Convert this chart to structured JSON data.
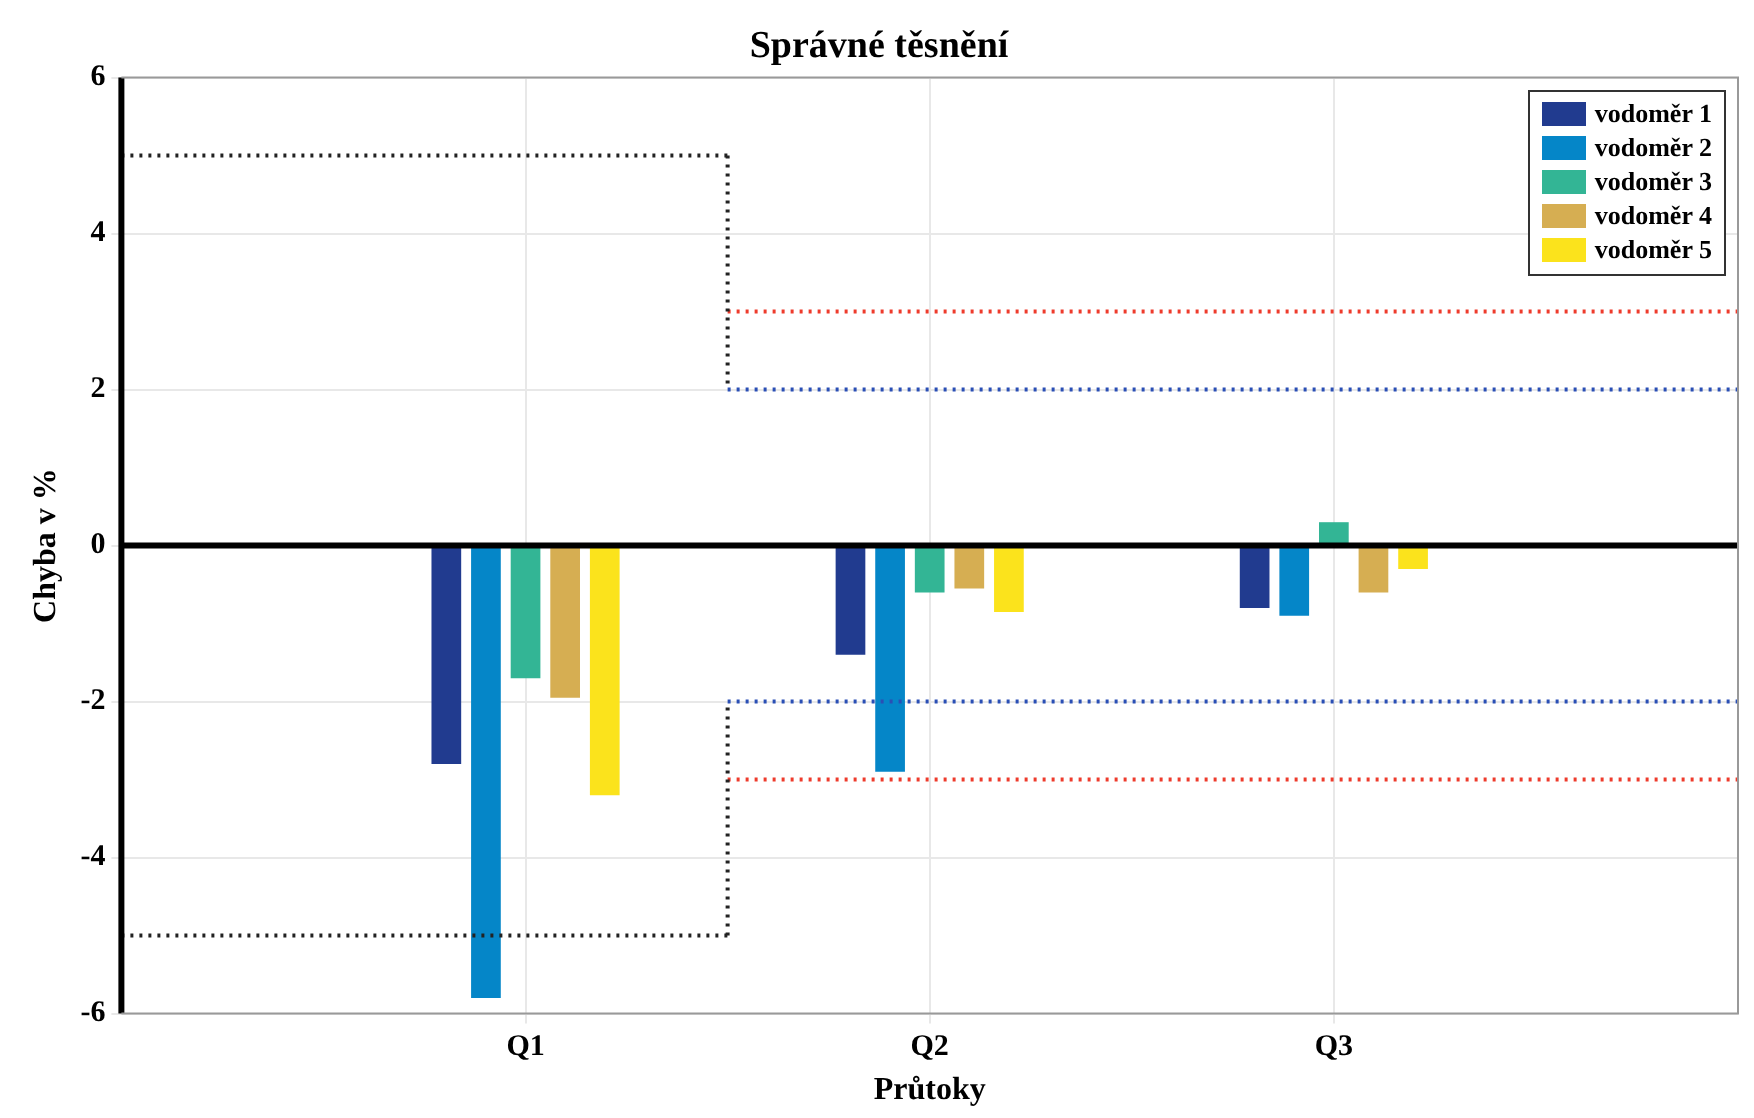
{
  "chart_data": {
    "type": "bar",
    "title": "Správné těsnění",
    "xlabel": "Průtoky",
    "ylabel": "Chyba v %",
    "categories": [
      null,
      null,
      "Q1",
      null,
      "Q2",
      null,
      "Q3",
      null,
      null
    ],
    "ylim": [
      -6,
      6
    ],
    "yticks": [
      -6,
      -4,
      -2,
      0,
      2,
      4,
      6
    ],
    "grid": true,
    "legend": "top right",
    "series": [
      {
        "name": "vodoměr 1",
        "color": "#213b8f",
        "values": [
          null,
          null,
          -2.8,
          null,
          -1.4,
          null,
          -0.8,
          null,
          null
        ]
      },
      {
        "name": "vodoměr 2",
        "color": "#0586c8",
        "values": [
          null,
          null,
          -5.8,
          null,
          -2.9,
          null,
          -0.9,
          null,
          null
        ]
      },
      {
        "name": "vodoměr 3",
        "color": "#33b595",
        "values": [
          null,
          null,
          -1.7,
          null,
          -0.6,
          null,
          0.3,
          null,
          null
        ]
      },
      {
        "name": "vodoměr 4",
        "color": "#d6ae52",
        "values": [
          null,
          null,
          -1.95,
          null,
          -0.55,
          null,
          -0.6,
          null,
          null
        ]
      },
      {
        "name": "vodoměr 5",
        "color": "#fbe31c",
        "values": [
          null,
          null,
          -3.2,
          null,
          -0.85,
          null,
          -0.3,
          null,
          null
        ]
      },
      {
        "type": "line",
        "color": "#222222",
        "line_style": "dotted",
        "values": [
          5,
          5,
          5,
          5,
          null,
          null,
          null,
          null,
          null
        ]
      },
      {
        "type": "line",
        "color": "#222222",
        "line_style": "dotted",
        "values": [
          -5,
          -5,
          -5,
          -5,
          null,
          null,
          null,
          null,
          null
        ]
      },
      {
        "type": "line",
        "color": "#ee3b2c",
        "line_style": "dotted",
        "values": [
          null,
          null,
          null,
          3,
          3,
          3,
          3,
          3,
          3
        ]
      },
      {
        "type": "line",
        "color": "#ee3b2c",
        "line_style": "dotted",
        "values": [
          null,
          null,
          null,
          -3,
          -3,
          -3,
          -3,
          -3,
          -3
        ]
      },
      {
        "type": "line",
        "color": "#2a4fb5",
        "line_style": "dotted",
        "values": [
          null,
          null,
          null,
          2,
          2,
          2,
          2,
          2,
          2
        ]
      },
      {
        "type": "line",
        "color": "#2a4fb5",
        "line_style": "dotted",
        "values": [
          null,
          null,
          null,
          -2,
          -2,
          -2,
          -2,
          -2,
          -2
        ]
      }
    ],
    "ref_lines": [
      {
        "axis": "y",
        "value": 0,
        "color": "#000000",
        "line_style": "solid"
      }
    ]
  }
}
